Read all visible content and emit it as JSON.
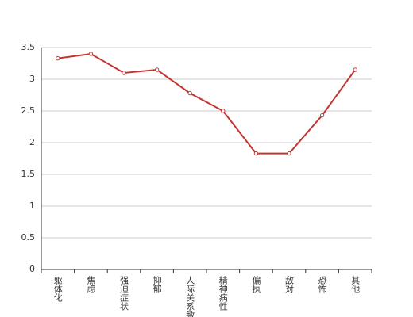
{
  "chart_data": {
    "type": "line",
    "categories": [
      "躯体化",
      "焦虑",
      "强迫症状",
      "抑郁",
      "人际关系敏感",
      "精神病性",
      "偏执",
      "敌对",
      "恐怖",
      "其他"
    ],
    "values": [
      3.33,
      3.4,
      3.1,
      3.15,
      2.78,
      2.5,
      1.83,
      1.83,
      2.43,
      3.15
    ],
    "color": "#c23531",
    "ylim": [
      0,
      3.5
    ],
    "yticks": [
      0,
      0.5,
      1,
      1.5,
      2,
      2.5,
      3,
      3.5
    ],
    "grid": true
  }
}
